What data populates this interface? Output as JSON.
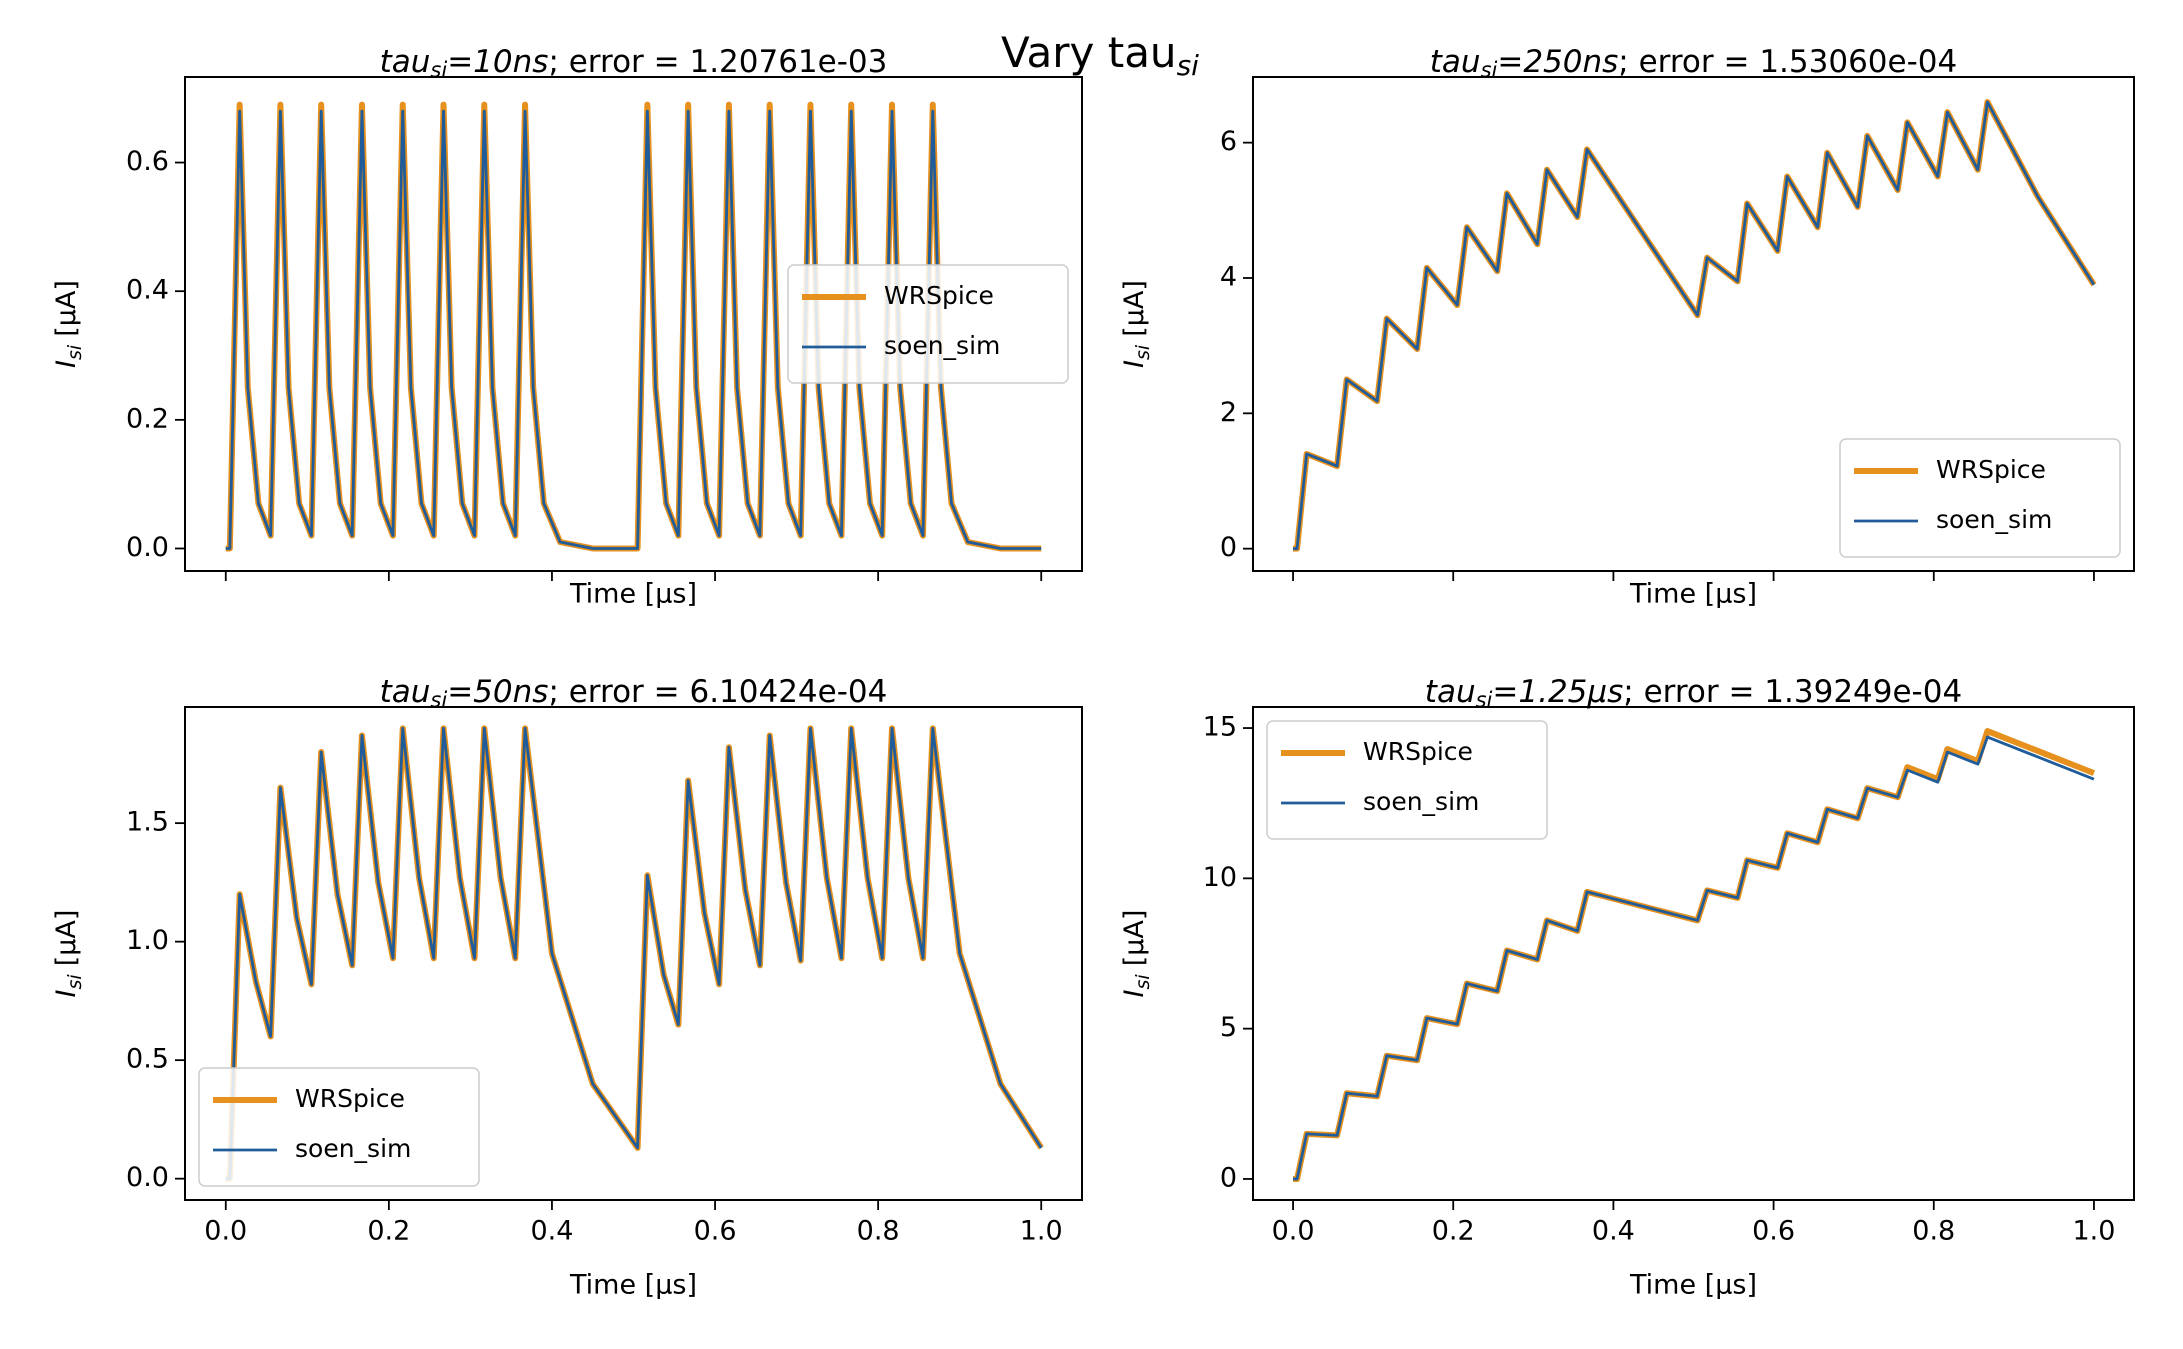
{
  "title": "Vary tau",
  "title_subscript": "si",
  "chart_data": [
    {
      "type": "line",
      "title": "tau",
      "title_subscript": "si",
      "title_value": "=10ns",
      "title_rest": "; error = 1.20761e-03",
      "xlabel": "Time [μs]",
      "ylabel": "I",
      "ylabel_subscript": "si",
      "ylabel_unit": "[μA]",
      "xlim": [
        -0.05,
        1.05
      ],
      "xticks": [
        0.0,
        0.2,
        0.4,
        0.6,
        0.8,
        1.0
      ],
      "show_xtick_labels": false,
      "ylim": [
        -0.035,
        0.733
      ],
      "yticks": [
        {
          "value": 0,
          "label": "0.0"
        },
        0.2,
        0.4,
        0.6
      ],
      "legend": "center right",
      "x": [
        0,
        0.005,
        0.017,
        0.027,
        0.04,
        0.055,
        0.067,
        0.077,
        0.09,
        0.105,
        0.117,
        0.127,
        0.14,
        0.155,
        0.167,
        0.177,
        0.19,
        0.205,
        0.217,
        0.227,
        0.24,
        0.255,
        0.267,
        0.277,
        0.29,
        0.305,
        0.317,
        0.327,
        0.34,
        0.355,
        0.367,
        0.377,
        0.39,
        0.41,
        0.45,
        0.505,
        0.517,
        0.527,
        0.54,
        0.555,
        0.567,
        0.577,
        0.59,
        0.605,
        0.617,
        0.627,
        0.64,
        0.655,
        0.667,
        0.677,
        0.69,
        0.705,
        0.717,
        0.727,
        0.74,
        0.755,
        0.767,
        0.777,
        0.79,
        0.805,
        0.817,
        0.827,
        0.84,
        0.855,
        0.867,
        0.877,
        0.89,
        0.91,
        0.95,
        1.0
      ],
      "series": [
        {
          "name": "WRSpice",
          "color": "#e6901d",
          "values": [
            0,
            0,
            0.69,
            0.25,
            0.07,
            0.02,
            0.69,
            0.25,
            0.07,
            0.02,
            0.69,
            0.25,
            0.07,
            0.02,
            0.69,
            0.25,
            0.07,
            0.02,
            0.69,
            0.25,
            0.07,
            0.02,
            0.69,
            0.25,
            0.07,
            0.02,
            0.69,
            0.25,
            0.07,
            0.02,
            0.69,
            0.25,
            0.07,
            0.01,
            0,
            0,
            0.69,
            0.25,
            0.07,
            0.02,
            0.69,
            0.25,
            0.07,
            0.02,
            0.69,
            0.25,
            0.07,
            0.02,
            0.69,
            0.25,
            0.07,
            0.02,
            0.69,
            0.25,
            0.07,
            0.02,
            0.69,
            0.25,
            0.07,
            0.02,
            0.69,
            0.25,
            0.07,
            0.02,
            0.69,
            0.25,
            0.07,
            0.01,
            0,
            0
          ]
        },
        {
          "name": "soen_sim",
          "color": "#1f5c99",
          "values": [
            0,
            0,
            0.68,
            0.25,
            0.07,
            0.02,
            0.68,
            0.25,
            0.07,
            0.02,
            0.68,
            0.25,
            0.07,
            0.02,
            0.68,
            0.25,
            0.07,
            0.02,
            0.68,
            0.25,
            0.07,
            0.02,
            0.68,
            0.25,
            0.07,
            0.02,
            0.68,
            0.25,
            0.07,
            0.02,
            0.68,
            0.25,
            0.07,
            0.01,
            0,
            0,
            0.68,
            0.25,
            0.07,
            0.02,
            0.68,
            0.25,
            0.07,
            0.02,
            0.68,
            0.25,
            0.07,
            0.02,
            0.68,
            0.25,
            0.07,
            0.02,
            0.68,
            0.25,
            0.07,
            0.02,
            0.68,
            0.25,
            0.07,
            0.02,
            0.68,
            0.25,
            0.07,
            0.02,
            0.68,
            0.25,
            0.07,
            0.01,
            0,
            0
          ]
        }
      ]
    },
    {
      "type": "line",
      "title": "tau",
      "title_subscript": "si",
      "title_value": "=250ns",
      "title_rest": "; error = 1.53060e-04",
      "xlabel": "Time [μs]",
      "ylabel": "I",
      "ylabel_subscript": "si",
      "ylabel_unit": "[μA]",
      "xlim": [
        -0.05,
        1.05
      ],
      "xticks": [
        0.0,
        0.2,
        0.4,
        0.6,
        0.8,
        1.0
      ],
      "show_xtick_labels": false,
      "ylim": [
        -0.33,
        6.97
      ],
      "yticks": [
        0,
        2,
        4,
        6
      ],
      "legend": "lower right",
      "x": [
        0,
        0.005,
        0.017,
        0.055,
        0.067,
        0.105,
        0.117,
        0.155,
        0.167,
        0.205,
        0.217,
        0.255,
        0.267,
        0.305,
        0.317,
        0.355,
        0.367,
        0.44,
        0.505,
        0.517,
        0.555,
        0.567,
        0.605,
        0.617,
        0.655,
        0.667,
        0.705,
        0.717,
        0.755,
        0.767,
        0.805,
        0.817,
        0.855,
        0.867,
        0.93,
        1.0
      ],
      "series": [
        {
          "name": "WRSpice",
          "color": "#e6901d",
          "values": [
            0,
            0,
            1.4,
            1.22,
            2.5,
            2.18,
            3.4,
            2.95,
            4.15,
            3.6,
            4.75,
            4.1,
            5.25,
            4.5,
            5.6,
            4.9,
            5.9,
            4.6,
            3.45,
            4.3,
            3.95,
            5.1,
            4.4,
            5.5,
            4.75,
            5.85,
            5.05,
            6.1,
            5.3,
            6.3,
            5.5,
            6.45,
            5.6,
            6.6,
            5.2,
            3.9
          ]
        },
        {
          "name": "soen_sim",
          "color": "#1f5c99",
          "values": [
            0,
            0,
            1.4,
            1.22,
            2.5,
            2.18,
            3.4,
            2.95,
            4.15,
            3.6,
            4.75,
            4.1,
            5.25,
            4.5,
            5.6,
            4.9,
            5.9,
            4.6,
            3.45,
            4.3,
            3.95,
            5.1,
            4.4,
            5.5,
            4.75,
            5.85,
            5.05,
            6.1,
            5.3,
            6.3,
            5.5,
            6.45,
            5.6,
            6.6,
            5.2,
            3.9
          ]
        }
      ]
    },
    {
      "type": "line",
      "title": "tau",
      "title_subscript": "si",
      "title_value": "=50ns",
      "title_rest": "; error = 6.10424e-04",
      "xlabel": "Time [μs]",
      "ylabel": "I",
      "ylabel_subscript": "si",
      "ylabel_unit": "[μA]",
      "xlim": [
        -0.05,
        1.05
      ],
      "xticks": [
        {
          "value": 0,
          "label": "0.0"
        },
        0.2,
        0.4,
        0.6,
        0.8,
        {
          "value": 1,
          "label": "1.0"
        }
      ],
      "show_xtick_labels": true,
      "ylim": [
        -0.09,
        1.99
      ],
      "yticks": [
        {
          "value": 0,
          "label": "0.0"
        },
        0.5,
        {
          "value": 1,
          "label": "1.0"
        },
        1.5
      ],
      "legend": "lower left",
      "x": [
        0,
        0.005,
        0.017,
        0.037,
        0.055,
        0.067,
        0.087,
        0.105,
        0.117,
        0.137,
        0.155,
        0.167,
        0.187,
        0.205,
        0.217,
        0.237,
        0.255,
        0.267,
        0.287,
        0.305,
        0.317,
        0.337,
        0.355,
        0.367,
        0.4,
        0.45,
        0.505,
        0.517,
        0.537,
        0.555,
        0.567,
        0.587,
        0.605,
        0.617,
        0.637,
        0.655,
        0.667,
        0.687,
        0.705,
        0.717,
        0.737,
        0.755,
        0.767,
        0.787,
        0.805,
        0.817,
        0.837,
        0.855,
        0.867,
        0.9,
        0.95,
        1.0
      ],
      "series": [
        {
          "name": "WRSpice",
          "color": "#e6901d",
          "values": [
            0,
            0,
            1.2,
            0.83,
            0.6,
            1.65,
            1.1,
            0.82,
            1.8,
            1.2,
            0.9,
            1.87,
            1.25,
            0.93,
            1.9,
            1.27,
            0.93,
            1.9,
            1.27,
            0.93,
            1.9,
            1.27,
            0.93,
            1.9,
            0.95,
            0.4,
            0.13,
            1.28,
            0.86,
            0.65,
            1.68,
            1.12,
            0.82,
            1.82,
            1.22,
            0.9,
            1.87,
            1.25,
            0.92,
            1.9,
            1.27,
            0.93,
            1.9,
            1.27,
            0.93,
            1.9,
            1.27,
            0.93,
            1.9,
            0.95,
            0.4,
            0.13
          ]
        },
        {
          "name": "soen_sim",
          "color": "#1f5c99",
          "values": [
            0,
            0,
            1.2,
            0.83,
            0.6,
            1.65,
            1.1,
            0.82,
            1.8,
            1.2,
            0.9,
            1.87,
            1.25,
            0.93,
            1.9,
            1.27,
            0.93,
            1.9,
            1.27,
            0.93,
            1.9,
            1.27,
            0.93,
            1.9,
            0.95,
            0.4,
            0.13,
            1.28,
            0.86,
            0.65,
            1.68,
            1.12,
            0.82,
            1.82,
            1.22,
            0.9,
            1.87,
            1.25,
            0.92,
            1.9,
            1.27,
            0.93,
            1.9,
            1.27,
            0.93,
            1.9,
            1.27,
            0.93,
            1.9,
            0.95,
            0.4,
            0.13
          ]
        }
      ]
    },
    {
      "type": "line",
      "title": "tau",
      "title_subscript": "si",
      "title_value": "=1.25μs",
      "title_rest": "; error = 1.39249e-04",
      "xlabel": "Time [μs]",
      "ylabel": "I",
      "ylabel_subscript": "si",
      "ylabel_unit": "[μA]",
      "xlim": [
        -0.05,
        1.05
      ],
      "xticks": [
        {
          "value": 0,
          "label": "0.0"
        },
        0.2,
        0.4,
        0.6,
        0.8,
        {
          "value": 1,
          "label": "1.0"
        }
      ],
      "show_xtick_labels": true,
      "ylim": [
        -0.7,
        15.7
      ],
      "yticks": [
        0,
        5,
        10,
        15
      ],
      "legend": "upper left",
      "x": [
        0,
        0.005,
        0.017,
        0.055,
        0.067,
        0.105,
        0.117,
        0.155,
        0.167,
        0.205,
        0.217,
        0.255,
        0.267,
        0.305,
        0.317,
        0.355,
        0.367,
        0.505,
        0.517,
        0.555,
        0.567,
        0.605,
        0.617,
        0.655,
        0.667,
        0.705,
        0.717,
        0.755,
        0.767,
        0.805,
        0.817,
        0.855,
        0.867,
        1.0
      ],
      "series": [
        {
          "name": "WRSpice",
          "color": "#e6901d",
          "values": [
            0,
            0,
            1.5,
            1.45,
            2.85,
            2.75,
            4.1,
            3.95,
            5.35,
            5.15,
            6.5,
            6.25,
            7.6,
            7.3,
            8.6,
            8.25,
            9.55,
            8.6,
            9.6,
            9.35,
            10.6,
            10.35,
            11.5,
            11.2,
            12.3,
            12.0,
            13.0,
            12.7,
            13.7,
            13.3,
            14.3,
            13.9,
            14.9,
            13.5
          ]
        },
        {
          "name": "soen_sim",
          "color": "#1f5c99",
          "values": [
            0,
            0,
            1.5,
            1.45,
            2.85,
            2.75,
            4.1,
            3.95,
            5.35,
            5.15,
            6.5,
            6.25,
            7.6,
            7.3,
            8.6,
            8.25,
            9.55,
            8.6,
            9.6,
            9.35,
            10.6,
            10.35,
            11.5,
            11.2,
            12.3,
            12.0,
            13.0,
            12.7,
            13.6,
            13.2,
            14.2,
            13.8,
            14.7,
            13.3
          ]
        }
      ]
    }
  ]
}
